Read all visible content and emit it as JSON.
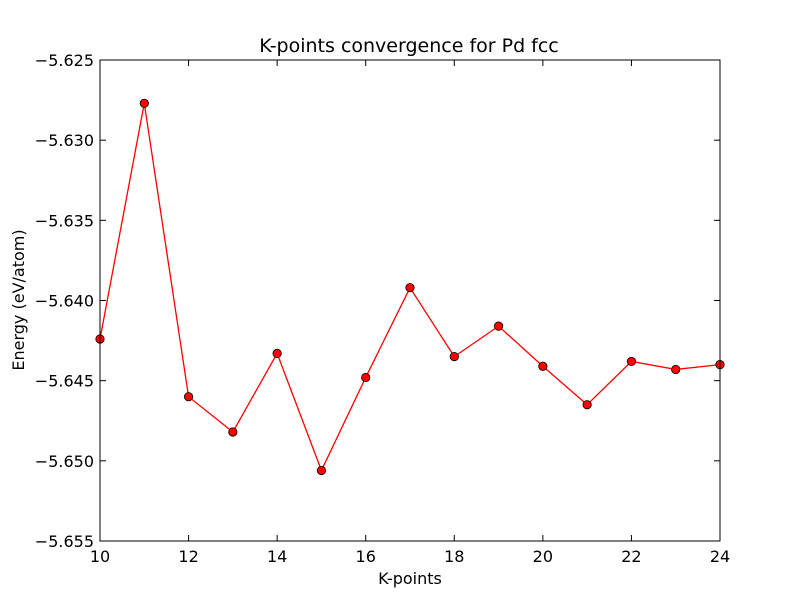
{
  "chart_data": {
    "type": "line",
    "title": "K-points convergence for Pd fcc",
    "xlabel": "K-points",
    "ylabel": "Energy (eV/atom)",
    "xlim": [
      10,
      24
    ],
    "ylim": [
      -5.655,
      -5.625
    ],
    "xticks": [
      "10",
      "12",
      "14",
      "16",
      "18",
      "20",
      "22",
      "24"
    ],
    "yticks": [
      "−5.625",
      "−5.630",
      "−5.635",
      "−5.640",
      "−5.645",
      "−5.650",
      "−5.655"
    ],
    "grid": false,
    "legend": "none",
    "series": [
      {
        "color": "#ff0000",
        "marker": "circle",
        "x": [
          10,
          11,
          12,
          13,
          14,
          15,
          16,
          17,
          18,
          19,
          20,
          21,
          22,
          23,
          24
        ],
        "y": [
          -5.6424,
          -5.6277,
          -5.646,
          -5.6482,
          -5.6433,
          -5.6506,
          -5.6448,
          -5.6392,
          -5.6435,
          -5.6416,
          -5.6441,
          -5.6465,
          -5.6438,
          -5.6443,
          -5.644
        ]
      }
    ]
  }
}
